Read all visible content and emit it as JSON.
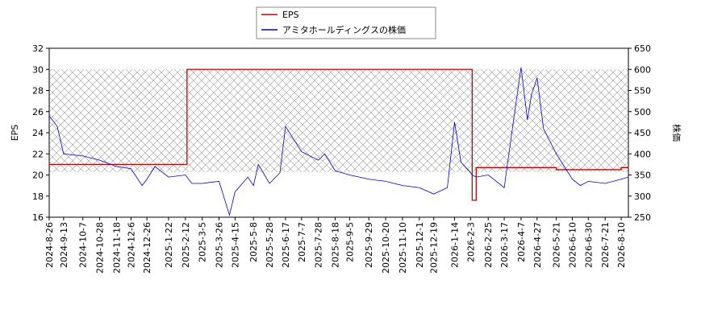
{
  "chart_data": {
    "type": "line",
    "legend_position": "upper center",
    "x": [
      "2024-8-26",
      "2024-9-5",
      "2024-9-13",
      "2024-10-7",
      "2024-10-28",
      "2024-11-18",
      "2024-12-6",
      "2024-12-20",
      "2024-12-26",
      "2025-1-5",
      "2025-1-22",
      "2025-2-12",
      "2025-2-14",
      "2025-2-20",
      "2025-3-5",
      "2025-3-26",
      "2025-4-8",
      "2025-4-15",
      "2025-5-1",
      "2025-5-8",
      "2025-5-14",
      "2025-5-28",
      "2025-6-10",
      "2025-6-17",
      "2025-7-7",
      "2025-7-28",
      "2025-8-5",
      "2025-8-18",
      "2025-9-5",
      "2025-9-29",
      "2025-10-20",
      "2025-11-10",
      "2025-12-1",
      "2025-12-19",
      "2026-1-5",
      "2026-1-14",
      "2026-1-22",
      "2026-2-3",
      "2026-2-5",
      "2026-2-10",
      "2026-2-25",
      "2026-3-17",
      "2026-3-25",
      "2026-4-7",
      "2026-4-15",
      "2026-4-20",
      "2026-4-27",
      "2026-5-5",
      "2026-5-21",
      "2026-6-10",
      "2026-6-20",
      "2026-6-30",
      "2026-7-21",
      "2026-8-10",
      "2026-8-19"
    ],
    "xlim": [
      "2024-8-26",
      "2026-8-19"
    ],
    "xticks": [
      "2024-8-26",
      "2024-9-13",
      "2024-10-7",
      "2024-10-28",
      "2024-11-18",
      "2024-12-6",
      "2024-12-26",
      "2025-1-22",
      "2025-2-12",
      "2025-3-5",
      "2025-3-26",
      "2025-4-15",
      "2025-5-8",
      "2025-5-28",
      "2025-6-17",
      "2025-7-7",
      "2025-7-28",
      "2025-8-18",
      "2025-9-5",
      "2025-9-29",
      "2025-10-20",
      "2025-11-10",
      "2025-12-1",
      "2025-12-19",
      "2026-1-14",
      "2026-2-3",
      "2026-2-25",
      "2026-3-17",
      "2026-4-7",
      "2026-4-27",
      "2026-5-21",
      "2026-6-10",
      "2026-6-30",
      "2026-7-21",
      "2026-8-10"
    ],
    "y_label": "EPS",
    "y2_label": "株価",
    "ylim": [
      16,
      32
    ],
    "yticks": [
      16,
      18,
      20,
      22,
      24,
      26,
      28,
      30,
      32
    ],
    "y2lim": [
      250,
      650
    ],
    "y2ticks": [
      250,
      300,
      350,
      400,
      450,
      500,
      550,
      600,
      650
    ],
    "series": [
      {
        "name": "EPS",
        "color": "#cc0000",
        "step": true,
        "values": [
          21,
          21,
          21,
          21,
          21,
          21,
          21,
          21,
          21,
          21,
          21,
          21,
          30,
          30,
          30,
          30,
          30,
          30,
          30,
          30,
          30,
          30,
          30,
          30,
          30,
          30,
          30,
          30,
          30,
          30,
          30,
          30,
          30,
          30,
          30,
          30,
          30,
          30,
          17.6,
          20.7,
          20.7,
          20.7,
          20.7,
          20.7,
          20.7,
          20.7,
          20.7,
          20.7,
          20.5,
          20.5,
          20.5,
          20.5,
          20.5,
          20.7,
          20.7
        ]
      },
      {
        "name": "アミタホールディングスの株価",
        "color": "#0000cc",
        "axis": "y2",
        "values": [
          490,
          465,
          400,
          395,
          385,
          370,
          365,
          325,
          340,
          370,
          345,
          350,
          345,
          330,
          330,
          335,
          255,
          310,
          345,
          325,
          375,
          330,
          355,
          465,
          405,
          385,
          400,
          360,
          350,
          340,
          335,
          325,
          320,
          305,
          320,
          475,
          380,
          355,
          350,
          345,
          350,
          320,
          430,
          605,
          480,
          540,
          580,
          460,
          400,
          340,
          325,
          335,
          330,
          340,
          345
        ]
      }
    ]
  }
}
